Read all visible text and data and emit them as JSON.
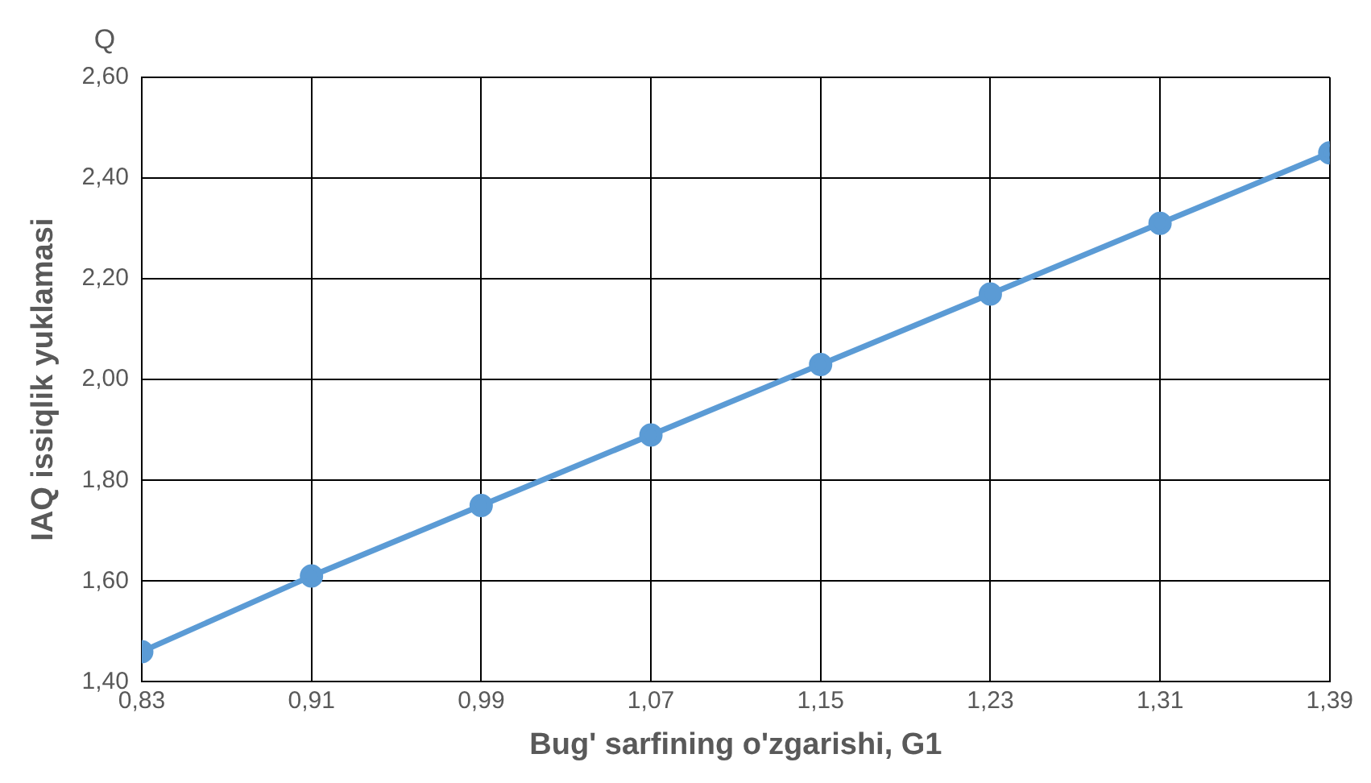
{
  "chart_data": {
    "type": "line",
    "xlabel": "Bug' sarfining o'zgarishi, G1",
    "ylabel": "IAQ issiqlik yuklamasi",
    "annotations": [
      "Q"
    ],
    "x": [
      0.83,
      0.91,
      0.99,
      1.07,
      1.15,
      1.23,
      1.31,
      1.39
    ],
    "series": [
      {
        "color": "#5b9bd5",
        "values": [
          1.46,
          1.61,
          1.75,
          1.89,
          2.03,
          2.17,
          2.31,
          2.45
        ]
      }
    ],
    "xlim": [
      0.83,
      1.39
    ],
    "xticks": [
      {
        "value": 0.83,
        "label": "0,83"
      },
      {
        "value": 0.91,
        "label": "0,91"
      },
      {
        "value": 0.99,
        "label": "0,99"
      },
      {
        "value": 1.07,
        "label": "1,07"
      },
      {
        "value": 1.15,
        "label": "1,15"
      },
      {
        "value": 1.23,
        "label": "1,23"
      },
      {
        "value": 1.31,
        "label": "1,31"
      },
      {
        "value": 1.39,
        "label": "1,39"
      }
    ],
    "ylim": [
      1.4,
      2.6
    ],
    "yticks": [
      {
        "value": 1.4,
        "label": "1,40"
      },
      {
        "value": 1.6,
        "label": "1,60"
      },
      {
        "value": 1.8,
        "label": "1,80"
      },
      {
        "value": 2.0,
        "label": "2,00"
      },
      {
        "value": 2.2,
        "label": "2,20"
      },
      {
        "value": 2.4,
        "label": "2,40"
      },
      {
        "value": 2.6,
        "label": "2,60"
      }
    ],
    "grid": true,
    "marker": "circle",
    "line_style": "solid",
    "legend": false
  }
}
